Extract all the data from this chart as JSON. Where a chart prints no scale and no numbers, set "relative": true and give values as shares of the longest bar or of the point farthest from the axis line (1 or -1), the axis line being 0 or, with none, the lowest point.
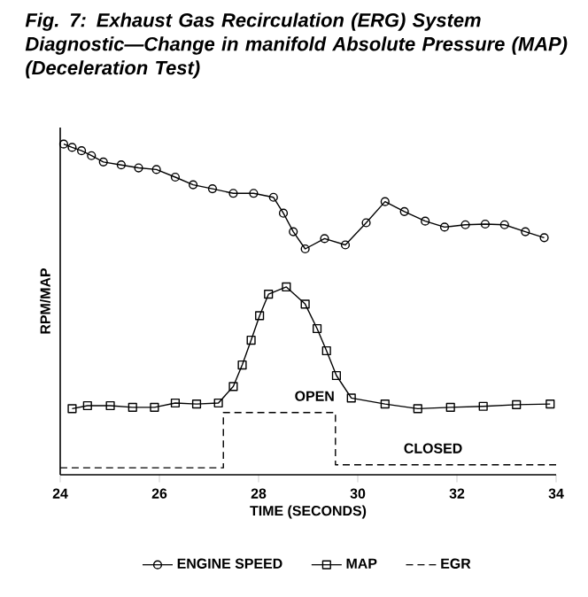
{
  "chart_data": {
    "type": "line",
    "title": "Fig. 7: Exhaust Gas Recirculation (ERG) System Diagnostic—Change in manifold Absolute Pressure (MAP) (Deceleration Test)",
    "xlabel": "TIME (SECONDS)",
    "ylabel": "RPM/MAP",
    "relative": true,
    "xlim": [
      24,
      34
    ],
    "xticks": [
      24,
      26,
      28,
      30,
      32,
      34
    ],
    "legend": "bottom",
    "grid": false,
    "series": [
      {
        "name": "ENGINE SPEED",
        "color": "#000000",
        "marker": "circle",
        "line_style": "solid",
        "x": [
          24.07,
          24.24,
          24.43,
          24.63,
          24.87,
          25.23,
          25.58,
          25.94,
          26.32,
          26.68,
          27.07,
          27.49,
          27.9,
          28.3,
          28.5,
          28.7,
          28.94,
          29.33,
          29.75,
          30.17,
          30.55,
          30.94,
          31.36,
          31.75,
          32.17,
          32.57,
          32.96,
          33.38,
          33.76
        ],
        "values": [
          1.0,
          0.99,
          0.98,
          0.965,
          0.946,
          0.937,
          0.928,
          0.923,
          0.9,
          0.877,
          0.865,
          0.851,
          0.851,
          0.839,
          0.791,
          0.735,
          0.683,
          0.714,
          0.695,
          0.762,
          0.826,
          0.796,
          0.767,
          0.749,
          0.756,
          0.758,
          0.756,
          0.735,
          0.717
        ]
      },
      {
        "name": "MAP",
        "color": "#000000",
        "marker": "square",
        "line_style": "solid",
        "x": [
          24.24,
          24.55,
          25.01,
          25.46,
          25.9,
          26.32,
          26.75,
          27.19,
          27.49,
          27.67,
          27.85,
          28.02,
          28.2,
          28.56,
          28.94,
          29.18,
          29.37,
          29.57,
          29.87,
          30.55,
          31.21,
          31.87,
          32.53,
          33.2,
          33.88
        ],
        "values": [
          0.2,
          0.209,
          0.209,
          0.204,
          0.204,
          0.217,
          0.214,
          0.217,
          0.267,
          0.332,
          0.407,
          0.481,
          0.546,
          0.568,
          0.516,
          0.442,
          0.375,
          0.3,
          0.232,
          0.214,
          0.2,
          0.204,
          0.207,
          0.212,
          0.214
        ]
      },
      {
        "name": "EGR",
        "color": "#000000",
        "marker": "none",
        "line_style": "dashed",
        "x": [
          24,
          27.29,
          27.29,
          29.55,
          29.55,
          34
        ],
        "values": [
          0.021,
          0.021,
          0.188,
          0.188,
          0.03,
          0.03
        ]
      }
    ],
    "annotations": [
      {
        "text": "OPEN",
        "x": 28.6,
        "y": 0.188
      },
      {
        "text": "CLOSED",
        "x": 30.8,
        "y": 0.03
      }
    ]
  }
}
